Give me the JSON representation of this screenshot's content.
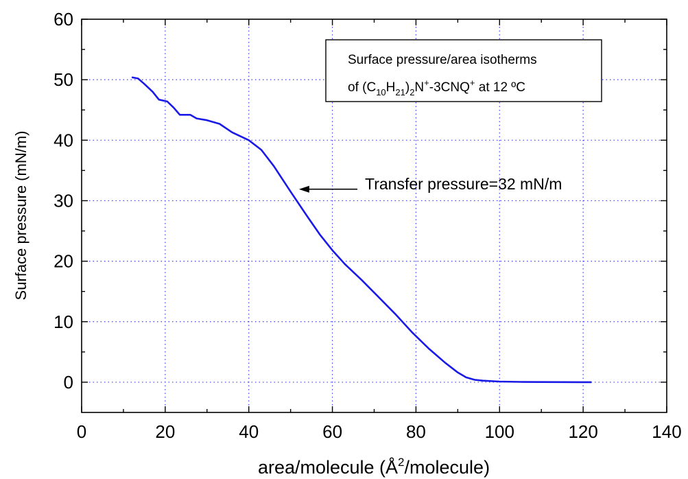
{
  "chart_data": {
    "type": "line",
    "xlabel_prefix": "area/molecule (Å",
    "xlabel_sup": "2",
    "xlabel_suffix": "/molecule)",
    "ylabel": "Surface pressure  (mN/m)",
    "xlim": [
      0,
      140
    ],
    "ylim": [
      -5,
      60
    ],
    "x_ticks": [
      0,
      20,
      40,
      60,
      80,
      100,
      120,
      140
    ],
    "y_ticks": [
      0,
      10,
      20,
      30,
      40,
      50,
      60
    ],
    "grid": true,
    "colors": {
      "curve": "#1a1ae6",
      "grid": "#3a3aff"
    },
    "legend_box": {
      "line1": "Surface pressure/area isotherms",
      "line2_parts": [
        {
          "t": "of (C",
          "s": "n"
        },
        {
          "t": "10",
          "s": "sub"
        },
        {
          "t": "H",
          "s": "n"
        },
        {
          "t": "21",
          "s": "sub"
        },
        {
          "t": ")",
          "s": "n"
        },
        {
          "t": "2",
          "s": "sub"
        },
        {
          "t": "N",
          "s": "n"
        },
        {
          "t": "+",
          "s": "sup"
        },
        {
          "t": "-3CNQ",
          "s": "n"
        },
        {
          "t": "+",
          "s": "sup"
        },
        {
          "t": " at 12 ºC",
          "s": "n"
        }
      ]
    },
    "annotation": {
      "text": "Transfer pressure=32 mN/m",
      "arrow_to": [
        52,
        31.9
      ]
    },
    "series": [
      {
        "x": [
          12,
          13.5,
          15,
          17,
          18.5,
          20.5,
          22,
          23.5,
          24.5,
          26,
          27.5,
          30,
          33,
          36,
          40,
          43,
          46,
          50,
          54,
          57,
          60,
          63,
          67,
          71,
          75,
          79,
          83,
          87,
          90,
          92,
          94,
          96,
          100,
          105,
          110,
          115,
          120,
          122
        ],
        "y": [
          50.4,
          50.2,
          49.3,
          48,
          46.7,
          46.4,
          45.4,
          44.2,
          44.2,
          44.2,
          43.6,
          43.3,
          42.7,
          41.3,
          40,
          38.4,
          35.7,
          31.5,
          27.4,
          24.4,
          21.8,
          19.5,
          16.9,
          14.1,
          11.3,
          8.3,
          5.6,
          3.2,
          1.6,
          0.8,
          0.4,
          0.25,
          0.1,
          0.05,
          0.03,
          0.01,
          0,
          0
        ]
      }
    ]
  }
}
